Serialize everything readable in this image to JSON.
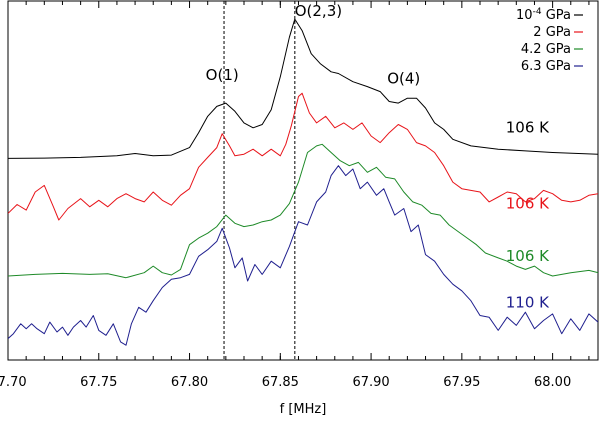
{
  "chart_data": {
    "type": "line",
    "title": "",
    "xlabel": "f [MHz]",
    "ylabel": "",
    "xlim": [
      67.7,
      68.025
    ],
    "x_ticks": [
      "67.70",
      "67.75",
      "67.80",
      "67.85",
      "67.90",
      "67.95",
      "68.00"
    ],
    "y_ticks": [],
    "grid": false,
    "legend_position": "top-right",
    "legend": [
      {
        "base": "10",
        "exp": "-4",
        "unit": " GPa",
        "color": "#000000"
      },
      {
        "base": "2",
        "exp": "",
        "unit": " GPa",
        "color": "#e8141a"
      },
      {
        "base": "4.2",
        "exp": "",
        "unit": " GPa",
        "color": "#1e8a28"
      },
      {
        "base": "6.3",
        "exp": "",
        "unit": " GPa",
        "color": "#20208f"
      }
    ],
    "reference_lines_x": [
      67.819,
      67.858
    ],
    "peak_labels": [
      {
        "text": "O(1)",
        "x": 67.818,
        "y": 0.79
      },
      {
        "text": "O(2,3)",
        "x": 67.871,
        "y": 0.985
      },
      {
        "text": "O(4)",
        "x": 67.918,
        "y": 0.78
      }
    ],
    "series": [
      {
        "name": "10-4 GPa",
        "color": "#000000",
        "temperature": "106 K",
        "baseline": 0.55,
        "points": [
          [
            67.7,
            0.552
          ],
          [
            67.72,
            0.553
          ],
          [
            67.74,
            0.555
          ],
          [
            67.76,
            0.56
          ],
          [
            67.77,
            0.567
          ],
          [
            67.78,
            0.56
          ],
          [
            67.79,
            0.562
          ],
          [
            67.8,
            0.585
          ],
          [
            67.805,
            0.63
          ],
          [
            67.81,
            0.68
          ],
          [
            67.815,
            0.71
          ],
          [
            67.82,
            0.72
          ],
          [
            67.825,
            0.695
          ],
          [
            67.83,
            0.66
          ],
          [
            67.835,
            0.645
          ],
          [
            67.84,
            0.655
          ],
          [
            67.845,
            0.7
          ],
          [
            67.85,
            0.8
          ],
          [
            67.855,
            0.92
          ],
          [
            67.858,
            0.975
          ],
          [
            67.862,
            0.94
          ],
          [
            67.867,
            0.87
          ],
          [
            67.872,
            0.84
          ],
          [
            67.878,
            0.815
          ],
          [
            67.882,
            0.81
          ],
          [
            67.89,
            0.785
          ],
          [
            67.898,
            0.77
          ],
          [
            67.905,
            0.755
          ],
          [
            67.91,
            0.725
          ],
          [
            67.915,
            0.72
          ],
          [
            67.92,
            0.735
          ],
          [
            67.925,
            0.735
          ],
          [
            67.93,
            0.705
          ],
          [
            67.935,
            0.66
          ],
          [
            67.94,
            0.64
          ],
          [
            67.945,
            0.61
          ],
          [
            67.955,
            0.59
          ],
          [
            67.97,
            0.58
          ],
          [
            67.985,
            0.575
          ],
          [
            68.0,
            0.57
          ],
          [
            68.025,
            0.565
          ]
        ]
      },
      {
        "name": "2 GPa",
        "color": "#e8141a",
        "temperature": "106 K",
        "baseline": 0.42,
        "points": [
          [
            67.7,
            0.385
          ],
          [
            67.705,
            0.412
          ],
          [
            67.71,
            0.395
          ],
          [
            67.715,
            0.45
          ],
          [
            67.72,
            0.47
          ],
          [
            67.725,
            0.405
          ],
          [
            67.728,
            0.365
          ],
          [
            67.733,
            0.4
          ],
          [
            67.74,
            0.43
          ],
          [
            67.745,
            0.405
          ],
          [
            67.75,
            0.425
          ],
          [
            67.755,
            0.405
          ],
          [
            67.76,
            0.43
          ],
          [
            67.765,
            0.445
          ],
          [
            67.77,
            0.43
          ],
          [
            67.775,
            0.42
          ],
          [
            67.78,
            0.45
          ],
          [
            67.785,
            0.425
          ],
          [
            67.79,
            0.41
          ],
          [
            67.795,
            0.44
          ],
          [
            67.8,
            0.46
          ],
          [
            67.805,
            0.525
          ],
          [
            67.81,
            0.555
          ],
          [
            67.815,
            0.585
          ],
          [
            67.818,
            0.627
          ],
          [
            67.822,
            0.59
          ],
          [
            67.825,
            0.56
          ],
          [
            67.83,
            0.565
          ],
          [
            67.835,
            0.58
          ],
          [
            67.84,
            0.56
          ],
          [
            67.845,
            0.58
          ],
          [
            67.85,
            0.56
          ],
          [
            67.853,
            0.595
          ],
          [
            67.856,
            0.65
          ],
          [
            67.86,
            0.74
          ],
          [
            67.862,
            0.75
          ],
          [
            67.866,
            0.69
          ],
          [
            67.87,
            0.66
          ],
          [
            67.875,
            0.68
          ],
          [
            67.88,
            0.645
          ],
          [
            67.885,
            0.66
          ],
          [
            67.89,
            0.64
          ],
          [
            67.895,
            0.66
          ],
          [
            67.9,
            0.62
          ],
          [
            67.905,
            0.6
          ],
          [
            67.91,
            0.63
          ],
          [
            67.915,
            0.655
          ],
          [
            67.92,
            0.64
          ],
          [
            67.925,
            0.6
          ],
          [
            67.93,
            0.59
          ],
          [
            67.935,
            0.57
          ],
          [
            67.94,
            0.53
          ],
          [
            67.945,
            0.48
          ],
          [
            67.95,
            0.46
          ],
          [
            67.955,
            0.455
          ],
          [
            67.96,
            0.45
          ],
          [
            67.965,
            0.42
          ],
          [
            67.97,
            0.435
          ],
          [
            67.975,
            0.45
          ],
          [
            67.98,
            0.445
          ],
          [
            67.985,
            0.42
          ],
          [
            67.99,
            0.43
          ],
          [
            67.995,
            0.455
          ],
          [
            68.0,
            0.445
          ],
          [
            68.005,
            0.425
          ],
          [
            68.01,
            0.42
          ],
          [
            68.015,
            0.425
          ],
          [
            68.02,
            0.44
          ],
          [
            68.025,
            0.445
          ]
        ]
      },
      {
        "name": "4.2 GPa",
        "color": "#1e8a28",
        "temperature": "106 K",
        "baseline": 0.205,
        "points": [
          [
            67.7,
            0.195
          ],
          [
            67.715,
            0.2
          ],
          [
            67.73,
            0.203
          ],
          [
            67.745,
            0.2
          ],
          [
            67.755,
            0.202
          ],
          [
            67.765,
            0.19
          ],
          [
            67.775,
            0.205
          ],
          [
            67.78,
            0.225
          ],
          [
            67.785,
            0.205
          ],
          [
            67.79,
            0.198
          ],
          [
            67.795,
            0.215
          ],
          [
            67.8,
            0.29
          ],
          [
            67.805,
            0.31
          ],
          [
            67.81,
            0.325
          ],
          [
            67.815,
            0.345
          ],
          [
            67.82,
            0.38
          ],
          [
            67.825,
            0.355
          ],
          [
            67.83,
            0.345
          ],
          [
            67.835,
            0.35
          ],
          [
            67.84,
            0.36
          ],
          [
            67.845,
            0.365
          ],
          [
            67.85,
            0.38
          ],
          [
            67.855,
            0.415
          ],
          [
            67.86,
            0.48
          ],
          [
            67.865,
            0.57
          ],
          [
            67.87,
            0.59
          ],
          [
            67.873,
            0.595
          ],
          [
            67.878,
            0.57
          ],
          [
            67.883,
            0.545
          ],
          [
            67.888,
            0.53
          ],
          [
            67.893,
            0.54
          ],
          [
            67.898,
            0.51
          ],
          [
            67.903,
            0.525
          ],
          [
            67.908,
            0.495
          ],
          [
            67.913,
            0.49
          ],
          [
            67.918,
            0.45
          ],
          [
            67.923,
            0.42
          ],
          [
            67.928,
            0.41
          ],
          [
            67.933,
            0.385
          ],
          [
            67.938,
            0.38
          ],
          [
            67.943,
            0.35
          ],
          [
            67.948,
            0.33
          ],
          [
            67.953,
            0.31
          ],
          [
            67.958,
            0.29
          ],
          [
            67.963,
            0.265
          ],
          [
            67.97,
            0.25
          ],
          [
            67.975,
            0.24
          ],
          [
            67.98,
            0.225
          ],
          [
            67.985,
            0.215
          ],
          [
            67.99,
            0.225
          ],
          [
            67.995,
            0.205
          ],
          [
            68.0,
            0.195
          ],
          [
            68.01,
            0.205
          ],
          [
            68.02,
            0.212
          ],
          [
            68.025,
            0.205
          ]
        ]
      },
      {
        "name": "6.3 GPa",
        "color": "#20208f",
        "temperature": "110 K",
        "baseline": 0.05,
        "points": [
          [
            67.7,
            0.005
          ],
          [
            67.703,
            0.02
          ],
          [
            67.707,
            0.05
          ],
          [
            67.71,
            0.035
          ],
          [
            67.713,
            0.05
          ],
          [
            67.716,
            0.035
          ],
          [
            67.72,
            0.02
          ],
          [
            67.723,
            0.055
          ],
          [
            67.727,
            0.025
          ],
          [
            67.73,
            0.04
          ],
          [
            67.733,
            0.015
          ],
          [
            67.736,
            0.04
          ],
          [
            67.74,
            0.06
          ],
          [
            67.743,
            0.04
          ],
          [
            67.747,
            0.075
          ],
          [
            67.75,
            0.03
          ],
          [
            67.754,
            0.015
          ],
          [
            67.758,
            0.05
          ],
          [
            67.762,
            -0.005
          ],
          [
            67.765,
            -0.015
          ],
          [
            67.768,
            0.05
          ],
          [
            67.772,
            0.1
          ],
          [
            67.776,
            0.085
          ],
          [
            67.78,
            0.12
          ],
          [
            67.785,
            0.16
          ],
          [
            67.79,
            0.185
          ],
          [
            67.795,
            0.19
          ],
          [
            67.8,
            0.2
          ],
          [
            67.805,
            0.255
          ],
          [
            67.81,
            0.275
          ],
          [
            67.815,
            0.3
          ],
          [
            67.818,
            0.34
          ],
          [
            67.822,
            0.28
          ],
          [
            67.825,
            0.22
          ],
          [
            67.829,
            0.25
          ],
          [
            67.832,
            0.18
          ],
          [
            67.836,
            0.23
          ],
          [
            67.84,
            0.2
          ],
          [
            67.845,
            0.24
          ],
          [
            67.85,
            0.22
          ],
          [
            67.855,
            0.285
          ],
          [
            67.86,
            0.36
          ],
          [
            67.865,
            0.35
          ],
          [
            67.87,
            0.42
          ],
          [
            67.875,
            0.45
          ],
          [
            67.878,
            0.5
          ],
          [
            67.882,
            0.53
          ],
          [
            67.886,
            0.5
          ],
          [
            67.89,
            0.52
          ],
          [
            67.894,
            0.46
          ],
          [
            67.898,
            0.48
          ],
          [
            67.903,
            0.44
          ],
          [
            67.907,
            0.46
          ],
          [
            67.91,
            0.42
          ],
          [
            67.913,
            0.38
          ],
          [
            67.918,
            0.4
          ],
          [
            67.922,
            0.33
          ],
          [
            67.926,
            0.35
          ],
          [
            67.93,
            0.26
          ],
          [
            67.935,
            0.24
          ],
          [
            67.94,
            0.2
          ],
          [
            67.945,
            0.17
          ],
          [
            67.95,
            0.15
          ],
          [
            67.955,
            0.12
          ],
          [
            67.96,
            0.075
          ],
          [
            67.965,
            0.07
          ],
          [
            67.97,
            0.03
          ],
          [
            67.975,
            0.07
          ],
          [
            67.98,
            0.045
          ],
          [
            67.985,
            0.085
          ],
          [
            67.99,
            0.035
          ],
          [
            67.995,
            0.06
          ],
          [
            68.0,
            0.08
          ],
          [
            68.005,
            0.02
          ],
          [
            68.01,
            0.065
          ],
          [
            68.015,
            0.03
          ],
          [
            68.02,
            0.08
          ],
          [
            68.025,
            0.055
          ]
        ]
      }
    ]
  }
}
